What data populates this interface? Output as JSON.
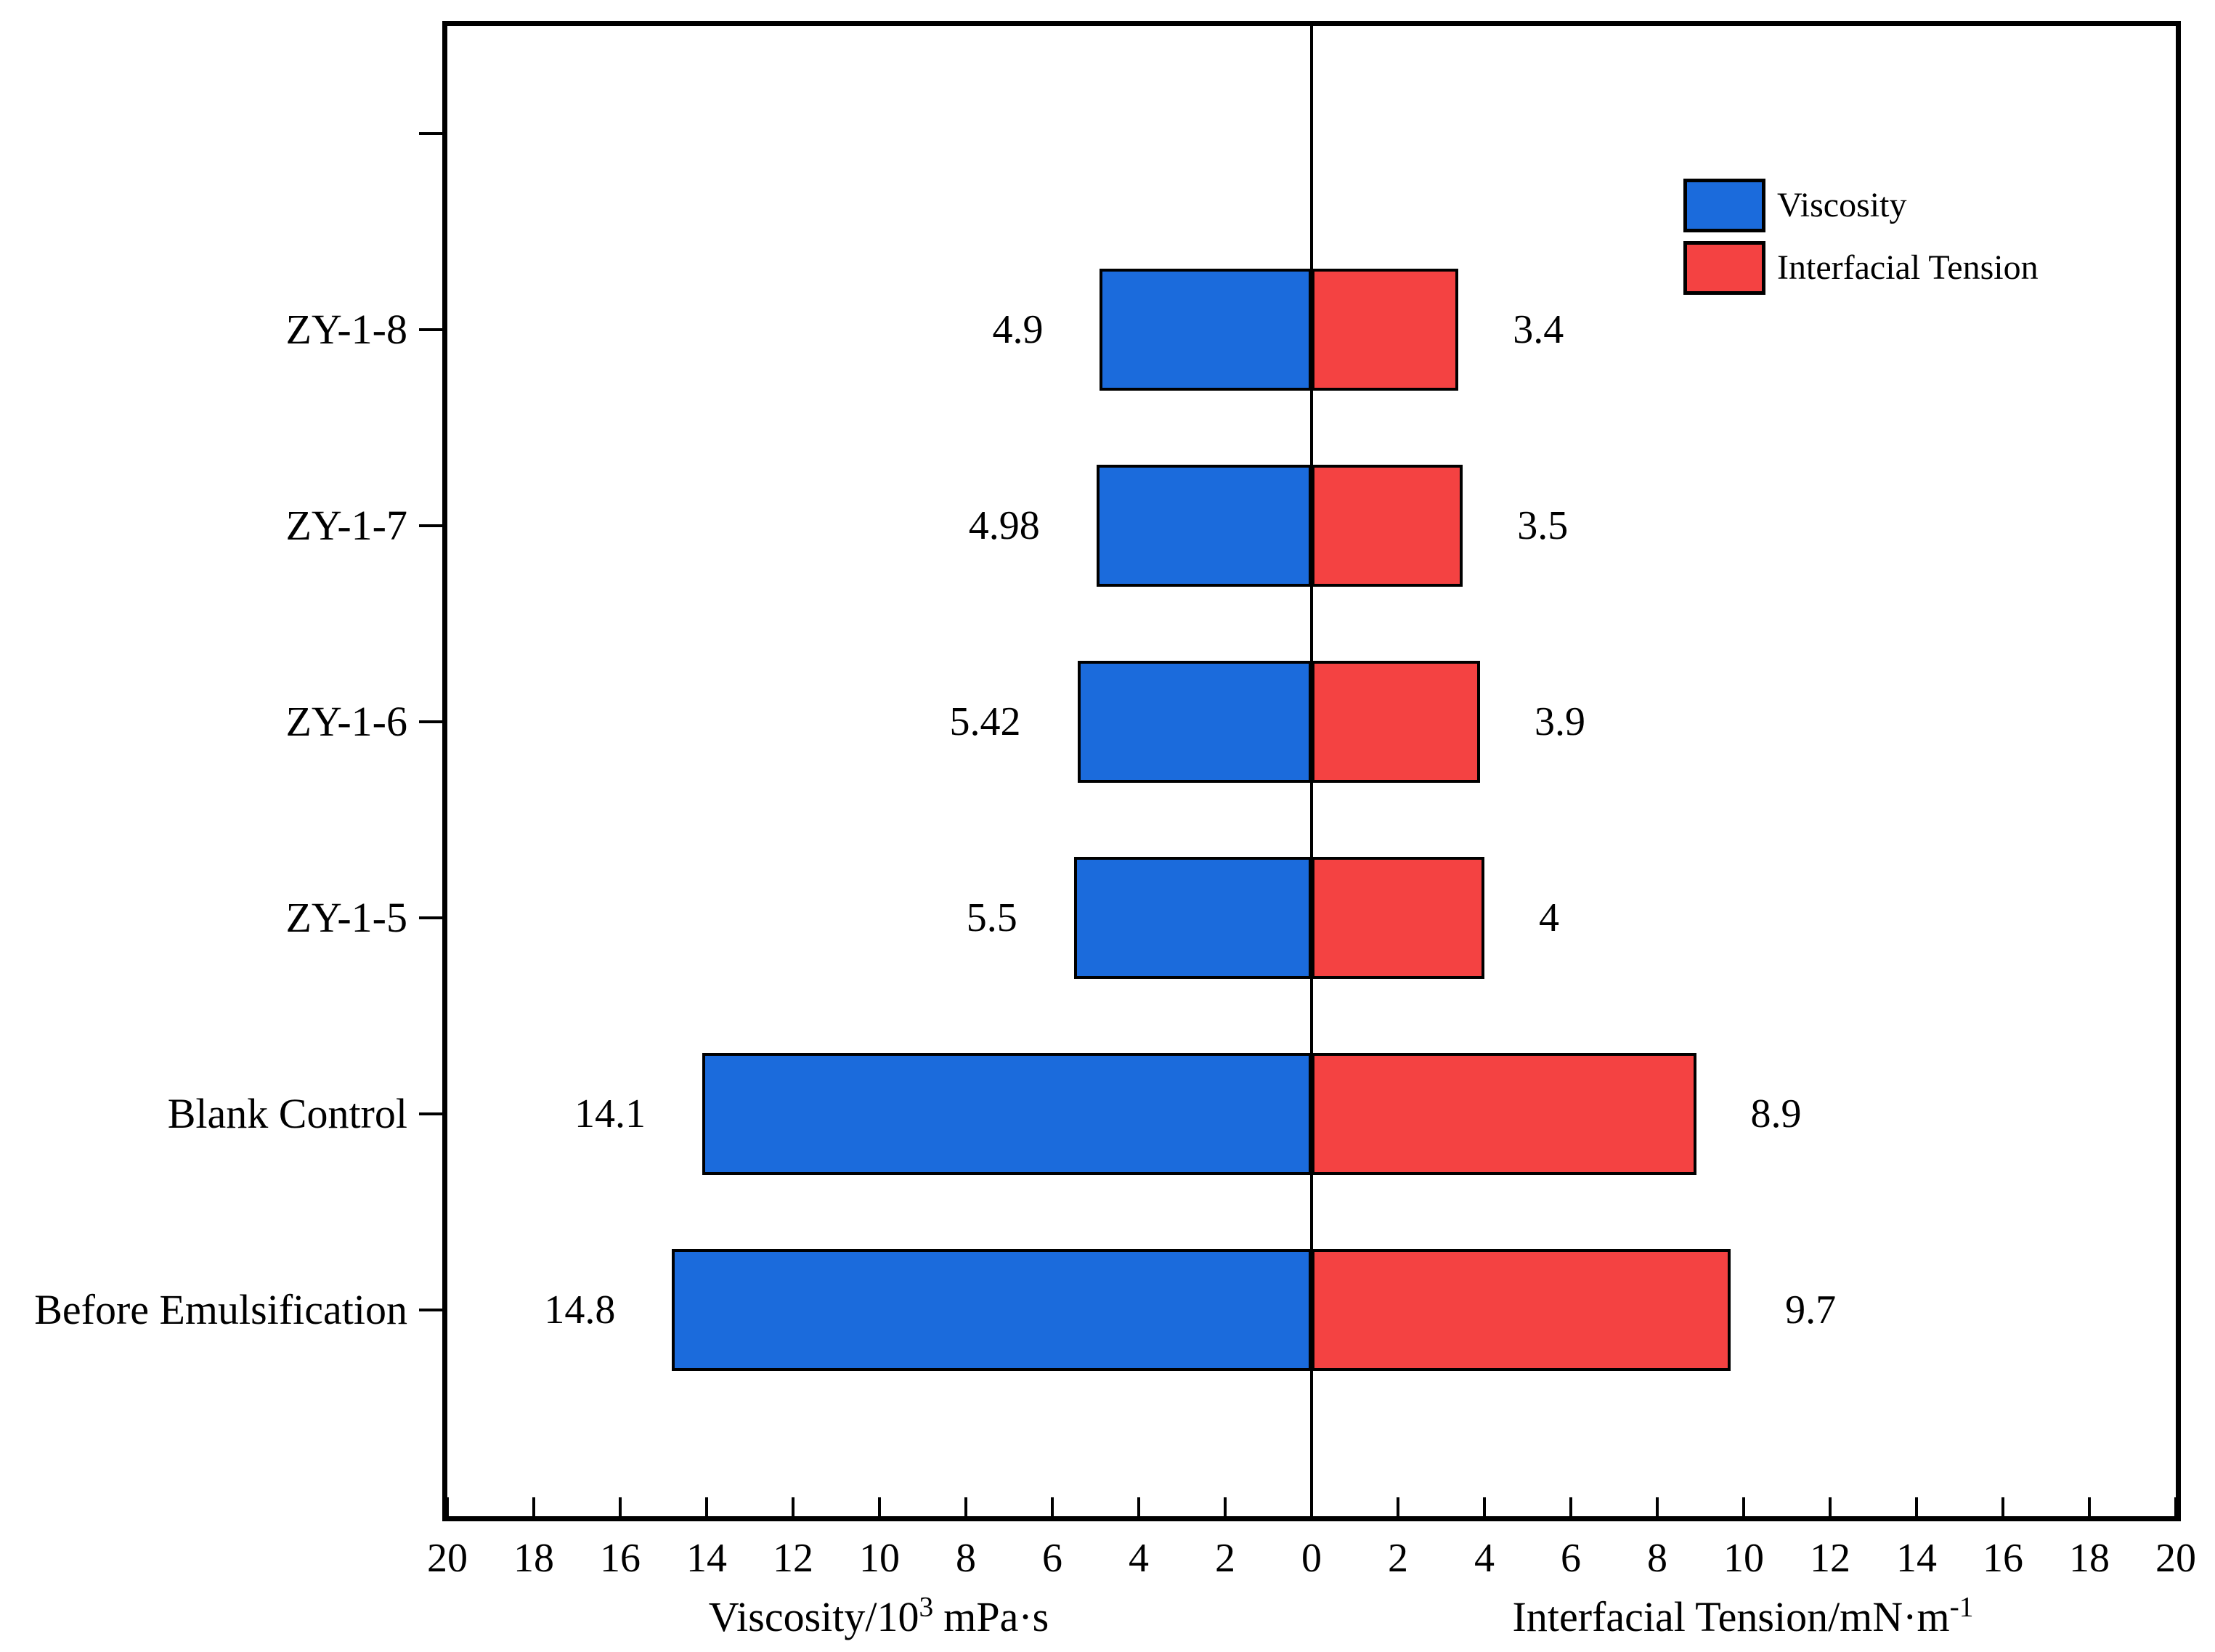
{
  "chart_data": {
    "type": "bar",
    "orientation": "diverging-horizontal",
    "title": "",
    "categories": [
      "ZY-1-8",
      "ZY-1-7",
      "ZY-1-6",
      "ZY-1-5",
      "Blank Control",
      "Before Emulsification"
    ],
    "series": [
      {
        "name": "Viscosity",
        "side": "left",
        "color": "#1B6BDC",
        "values": [
          4.9,
          4.98,
          5.42,
          5.5,
          14.1,
          14.8
        ]
      },
      {
        "name": "Interfacial Tension",
        "side": "right",
        "color": "#F44242",
        "values": [
          3.4,
          3.5,
          3.9,
          4,
          8.9,
          9.7
        ]
      }
    ],
    "value_labels": {
      "left": [
        "4.9",
        "4.98",
        "5.42",
        "5.5",
        "14.1",
        "14.8"
      ],
      "right": [
        "3.4",
        "3.5",
        "3.9",
        "4",
        "8.9",
        "9.7"
      ]
    },
    "x_axis": {
      "left_ticks": [
        "20",
        "18",
        "16",
        "14",
        "12",
        "10",
        "8",
        "6",
        "4",
        "2"
      ],
      "zero_tick": "0",
      "right_ticks": [
        "2",
        "4",
        "6",
        "8",
        "10",
        "12",
        "14",
        "16",
        "18",
        "20"
      ],
      "xlim_left": [
        0,
        20
      ],
      "xlim_right": [
        0,
        20
      ],
      "grid": false
    },
    "axis_titles": {
      "left": {
        "base": "Viscosity/10",
        "sup": "3",
        "rest": "mPa·s"
      },
      "right": {
        "base": "Interfacial Tension/mN·m",
        "sup": "-1",
        "rest": ""
      }
    },
    "legend": [
      {
        "label": "Viscosity",
        "color": "#1B6BDC"
      },
      {
        "label": "Interfacial Tension",
        "color": "#F44242"
      }
    ],
    "legend_position": "top-right"
  }
}
